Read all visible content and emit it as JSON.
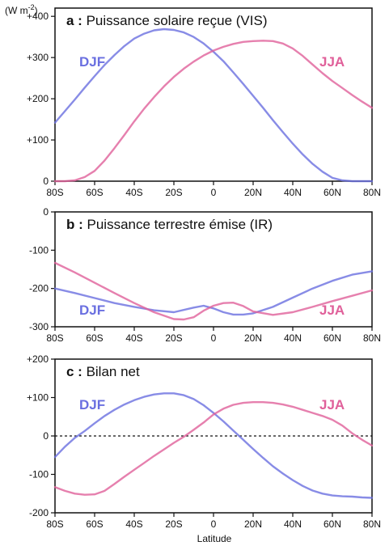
{
  "unit": "(W m",
  "unit_sup": "-2",
  "unit_close": ")",
  "xlabel": "Latitude",
  "colors": {
    "DJF": "#6a6fe0",
    "JJA": "#e0609a",
    "axis": "#111111"
  },
  "x_ticks": [
    "80S",
    "60S",
    "40S",
    "20S",
    "0",
    "20N",
    "40N",
    "60N",
    "80N"
  ],
  "chart_data": [
    {
      "type": "line",
      "letter": "a :",
      "title": "Puissance solaire reçue (VIS)",
      "xlim": [
        -80,
        80
      ],
      "ylim": [
        0,
        420
      ],
      "y_ticks": [
        0,
        100,
        200,
        300,
        400
      ],
      "y_tick_labels": [
        "0",
        "+100",
        "+200",
        "+300",
        "+400"
      ],
      "series": [
        {
          "name": "DJF",
          "x": [
            -80,
            -75,
            -70,
            -65,
            -60,
            -55,
            -50,
            -45,
            -40,
            -35,
            -30,
            -25,
            -20,
            -15,
            -10,
            -5,
            0,
            5,
            10,
            15,
            20,
            25,
            30,
            35,
            40,
            45,
            50,
            55,
            60,
            65,
            70,
            75,
            80
          ],
          "y": [
            142,
            170,
            198,
            227,
            255,
            282,
            306,
            328,
            346,
            358,
            366,
            369,
            367,
            361,
            350,
            334,
            314,
            291,
            264,
            236,
            207,
            178,
            148,
            119,
            91,
            65,
            42,
            23,
            8,
            2,
            0,
            0,
            0
          ]
        },
        {
          "name": "JJA",
          "x": [
            -80,
            -75,
            -70,
            -65,
            -60,
            -55,
            -50,
            -45,
            -40,
            -35,
            -30,
            -25,
            -20,
            -15,
            -10,
            -5,
            0,
            5,
            10,
            15,
            20,
            25,
            30,
            35,
            40,
            45,
            50,
            55,
            60,
            65,
            70,
            75,
            80
          ],
          "y": [
            0,
            0,
            2,
            10,
            25,
            50,
            80,
            112,
            145,
            176,
            204,
            230,
            253,
            273,
            290,
            305,
            317,
            326,
            333,
            338,
            340,
            341,
            340,
            334,
            322,
            304,
            283,
            262,
            243,
            226,
            209,
            193,
            178
          ]
        }
      ]
    },
    {
      "type": "line",
      "letter": "b :",
      "title": "Puissance terrestre émise (IR)",
      "xlim": [
        -80,
        80
      ],
      "ylim": [
        -300,
        0
      ],
      "y_ticks": [
        0,
        -100,
        -200,
        -300
      ],
      "y_tick_labels": [
        "0",
        "-100",
        "-200",
        "-300"
      ],
      "series": [
        {
          "name": "DJF",
          "x": [
            -80,
            -70,
            -60,
            -50,
            -40,
            -30,
            -20,
            -10,
            -5,
            0,
            5,
            10,
            15,
            20,
            30,
            40,
            50,
            60,
            70,
            80
          ],
          "y": [
            -200,
            -212,
            -225,
            -238,
            -248,
            -257,
            -262,
            -250,
            -245,
            -252,
            -262,
            -268,
            -268,
            -265,
            -248,
            -224,
            -200,
            -180,
            -164,
            -155
          ]
        },
        {
          "name": "JJA",
          "x": [
            -80,
            -70,
            -60,
            -50,
            -40,
            -30,
            -20,
            -15,
            -10,
            -5,
            0,
            5,
            10,
            15,
            20,
            30,
            40,
            50,
            60,
            70,
            80
          ],
          "y": [
            -133,
            -158,
            -185,
            -212,
            -238,
            -262,
            -280,
            -281,
            -275,
            -258,
            -245,
            -238,
            -237,
            -246,
            -260,
            -269,
            -262,
            -248,
            -233,
            -219,
            -205
          ]
        }
      ]
    },
    {
      "type": "line",
      "letter": "c :",
      "title": "Bilan net",
      "xlim": [
        -80,
        80
      ],
      "ylim": [
        -200,
        200
      ],
      "y_ticks": [
        -200,
        -100,
        0,
        100,
        200
      ],
      "y_tick_labels": [
        "-200",
        "-100",
        "0",
        "+100",
        "+200"
      ],
      "zero_line": true,
      "series": [
        {
          "name": "DJF",
          "x": [
            -80,
            -75,
            -70,
            -65,
            -60,
            -55,
            -50,
            -45,
            -40,
            -35,
            -30,
            -25,
            -20,
            -15,
            -10,
            -5,
            0,
            5,
            10,
            15,
            20,
            25,
            30,
            35,
            40,
            45,
            50,
            55,
            60,
            65,
            70,
            75,
            80
          ],
          "y": [
            -55,
            -28,
            -5,
            13,
            33,
            52,
            68,
            82,
            93,
            102,
            108,
            111,
            111,
            106,
            96,
            80,
            60,
            38,
            14,
            -10,
            -34,
            -57,
            -79,
            -98,
            -115,
            -130,
            -142,
            -150,
            -155,
            -157,
            -158,
            -160,
            -161
          ]
        },
        {
          "name": "JJA",
          "x": [
            -80,
            -75,
            -70,
            -65,
            -60,
            -55,
            -50,
            -45,
            -40,
            -35,
            -30,
            -25,
            -20,
            -15,
            -10,
            -5,
            0,
            5,
            10,
            15,
            20,
            25,
            30,
            35,
            40,
            45,
            50,
            55,
            60,
            65,
            70,
            75,
            80
          ],
          "y": [
            -133,
            -143,
            -150,
            -153,
            -152,
            -143,
            -125,
            -106,
            -88,
            -70,
            -52,
            -35,
            -18,
            -2,
            16,
            35,
            56,
            71,
            81,
            86,
            88,
            88,
            86,
            82,
            76,
            68,
            60,
            52,
            42,
            27,
            7,
            -10,
            -25
          ]
        }
      ]
    }
  ]
}
